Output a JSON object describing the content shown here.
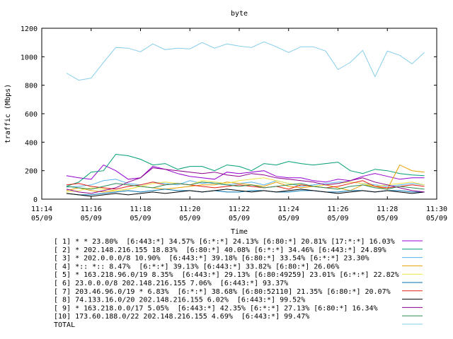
{
  "chart_data": {
    "type": "line",
    "title": "byte",
    "xlabel": "Time",
    "ylabel": "traffic (Mbps)",
    "ylim": [
      0,
      1200
    ],
    "yticks": [
      0,
      200,
      400,
      600,
      800,
      1000,
      1200
    ],
    "xlim_minutes": [
      0,
      16
    ],
    "xtick_labels": [
      {
        "time": "11:14",
        "date": "05/09"
      },
      {
        "time": "11:16",
        "date": "05/09"
      },
      {
        "time": "11:18",
        "date": "05/09"
      },
      {
        "time": "11:20",
        "date": "05/09"
      },
      {
        "time": "11:22",
        "date": "05/09"
      },
      {
        "time": "11:24",
        "date": "05/09"
      },
      {
        "time": "11:26",
        "date": "05/09"
      },
      {
        "time": "11:28",
        "date": "05/09"
      },
      {
        "time": "11:30",
        "date": "05/09"
      }
    ],
    "grid": false,
    "legend_position": "bottom",
    "x": [
      "11:15:00",
      "11:15:30",
      "11:16:00",
      "11:16:30",
      "11:17:00",
      "11:17:30",
      "11:18:00",
      "11:18:30",
      "11:19:00",
      "11:19:30",
      "11:20:00",
      "11:20:30",
      "11:21:00",
      "11:21:30",
      "11:22:00",
      "11:22:30",
      "11:23:00",
      "11:23:30",
      "11:24:00",
      "11:24:30",
      "11:25:00",
      "11:25:30",
      "11:26:00",
      "11:26:30",
      "11:27:00",
      "11:27:30",
      "11:28:00",
      "11:28:30",
      "11:29:00",
      "11:29:30"
    ],
    "series": [
      {
        "name": "[ 1] * * 23.80%  [6:443:*] 34.57% [6:*:*] 24.13% [6:80:*] 20.81% [17:*:*] 16.03%",
        "color": "#9400d3",
        "values": [
          165,
          150,
          140,
          240,
          200,
          140,
          150,
          230,
          210,
          180,
          160,
          150,
          140,
          190,
          180,
          190,
          200,
          160,
          150,
          150,
          130,
          120,
          140,
          130,
          160,
          180,
          160,
          140,
          150,
          150
        ]
      },
      {
        "name": "[ 2] * 202.148.216.155 18.83%  [6:80:*] 40.08% [6:*:*] 34.46% [6:443:*] 24.89%",
        "color": "#009e73",
        "values": [
          90,
          120,
          190,
          200,
          315,
          305,
          280,
          240,
          250,
          210,
          230,
          230,
          200,
          240,
          230,
          200,
          250,
          240,
          265,
          250,
          240,
          250,
          260,
          200,
          180,
          210,
          200,
          180,
          170,
          165
        ]
      },
      {
        "name": "[ 3] * 202.0.0.0/8 10.90%  [6:443:*] 39.18% [6:80:*] 33.54% [6:*:*] 23.30%",
        "color": "#56b4e9",
        "values": [
          85,
          90,
          100,
          130,
          140,
          110,
          100,
          120,
          110,
          100,
          130,
          110,
          120,
          100,
          110,
          120,
          100,
          130,
          110,
          90,
          100,
          110,
          120,
          120,
          110,
          100,
          90,
          100,
          110,
          100
        ]
      },
      {
        "name": "[ 4] *:: *:: 8.47%  [6:*:*] 39.13% [6:443:*] 33.82% [6:80:*] 26.06%",
        "color": "#e69f00",
        "values": [
          60,
          80,
          60,
          50,
          60,
          70,
          90,
          80,
          70,
          80,
          90,
          100,
          100,
          120,
          110,
          100,
          90,
          120,
          90,
          80,
          90,
          100,
          80,
          60,
          100,
          90,
          70,
          240,
          200,
          190
        ]
      },
      {
        "name": "[ 5] * 163.218.96.0/19 8.35%  [6:443:*] 29.13% [6:80:49259] 23.01% [6:*:*] 22.82%",
        "color": "#f0e442",
        "values": [
          50,
          60,
          80,
          70,
          60,
          70,
          90,
          110,
          120,
          110,
          100,
          130,
          120,
          110,
          130,
          140,
          150,
          130,
          110,
          100,
          90,
          100,
          110,
          120,
          110,
          90,
          100,
          110,
          120,
          100
        ]
      },
      {
        "name": "[ 6] 23.0.0.0/8 202.148.216.155 7.06%  [6:443:*] 93.37%",
        "color": "#0072b2",
        "values": [
          40,
          30,
          30,
          40,
          50,
          60,
          50,
          60,
          70,
          60,
          60,
          50,
          60,
          50,
          50,
          60,
          60,
          50,
          50,
          60,
          60,
          50,
          50,
          60,
          60,
          50,
          60,
          60,
          50,
          50
        ]
      },
      {
        "name": "[ 7] 203.46.96.0/19 * 6.83%  [6:*:*] 38.68% [6:80:52110] 21.35% [6:80:*] 20.07%",
        "color": "#e51e10",
        "values": [
          100,
          110,
          90,
          80,
          70,
          90,
          100,
          120,
          100,
          110,
          100,
          90,
          80,
          90,
          100,
          90,
          80,
          90,
          70,
          100,
          90,
          80,
          90,
          110,
          130,
          90,
          80,
          90,
          100,
          90
        ]
      },
      {
        "name": "[ 8] 74.133.16.0/20 202.148.216.155 6.02%  [6:443:*] 99.52%",
        "color": "#000000",
        "values": [
          40,
          30,
          20,
          30,
          40,
          30,
          40,
          50,
          40,
          50,
          60,
          50,
          60,
          70,
          60,
          50,
          60,
          50,
          60,
          70,
          60,
          50,
          40,
          50,
          60,
          50,
          60,
          50,
          40,
          50
        ]
      },
      {
        "name": "[ 9] * 163.218.0.0/17 5.05%  [6:443:*] 42.35% [6:*:*] 27.13% [6:80:*] 16.34%",
        "color": "#8b008b",
        "values": [
          70,
          50,
          40,
          60,
          80,
          120,
          150,
          220,
          210,
          200,
          190,
          180,
          190,
          170,
          160,
          180,
          170,
          150,
          140,
          130,
          120,
          100,
          110,
          130,
          150,
          120,
          100,
          80,
          60,
          50
        ]
      },
      {
        "name": "[10] 173.60.188.0/22 202.148.216.155 4.69%  [6:443:*] 99.47%",
        "color": "#2e8b57",
        "values": [
          90,
          80,
          70,
          90,
          110,
          100,
          90,
          80,
          100,
          110,
          100,
          120,
          110,
          100,
          90,
          100,
          80,
          90,
          100,
          110,
          90,
          80,
          70,
          90,
          100,
          80,
          70,
          90,
          80,
          70
        ]
      },
      {
        "name": "TOTAL",
        "color": "#87ceeb",
        "values": [
          885,
          835,
          850,
          960,
          1065,
          1060,
          1035,
          1090,
          1050,
          1060,
          1055,
          1100,
          1060,
          1090,
          1075,
          1065,
          1105,
          1070,
          1030,
          1070,
          1070,
          1040,
          910,
          960,
          1045,
          860,
          1040,
          1010,
          950,
          1030
        ]
      }
    ]
  }
}
